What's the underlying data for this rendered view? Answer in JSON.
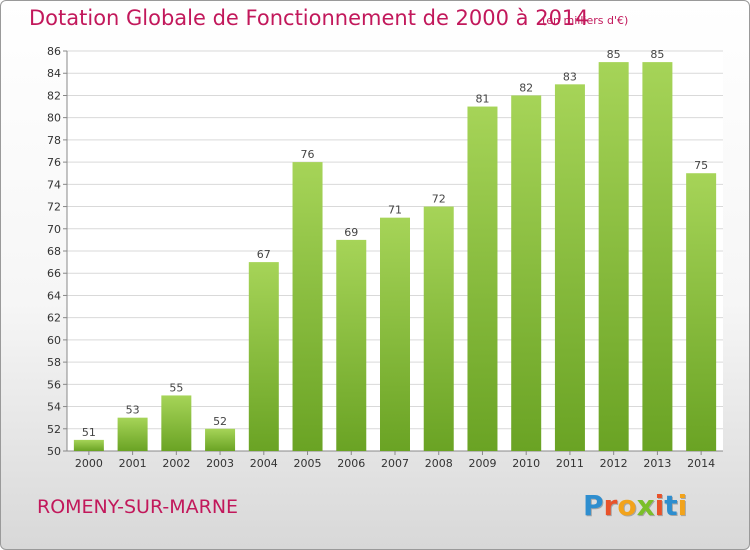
{
  "title": "Dotation Globale de Fonctionnement de 2000 à 2014",
  "unit": "(en milliers d'€)",
  "commune": "ROMENY-SUR-MARNE",
  "logo": {
    "letters": [
      "P",
      "r",
      "o",
      "x",
      "i",
      "t",
      "i"
    ],
    "colors": [
      "#2e8ecf",
      "#e8522a",
      "#f2a31b",
      "#7bbf2a",
      "#e8522a",
      "#2e8ecf",
      "#f2a31b"
    ]
  },
  "colors": {
    "bar_light": "#a6d458",
    "bar_dark": "#6aa324",
    "title": "#c2185b",
    "grid": "#d9d9d9"
  },
  "chart_data": {
    "type": "bar",
    "title": "Dotation Globale de Fonctionnement de 2000 à 2014",
    "subtitle": "(en milliers d'€)",
    "xlabel": "",
    "ylabel": "",
    "categories": [
      "2000",
      "2001",
      "2002",
      "2003",
      "2004",
      "2005",
      "2006",
      "2007",
      "2008",
      "2009",
      "2010",
      "2011",
      "2012",
      "2013",
      "2014"
    ],
    "values": [
      51,
      53,
      55,
      52,
      67,
      76,
      69,
      71,
      72,
      81,
      82,
      83,
      85,
      85,
      75
    ],
    "ylim": [
      50,
      86
    ],
    "yticks": [
      50,
      52,
      54,
      56,
      58,
      60,
      62,
      64,
      66,
      68,
      70,
      72,
      74,
      76,
      78,
      80,
      82,
      84,
      86
    ],
    "grid": true,
    "data_labels": true
  }
}
